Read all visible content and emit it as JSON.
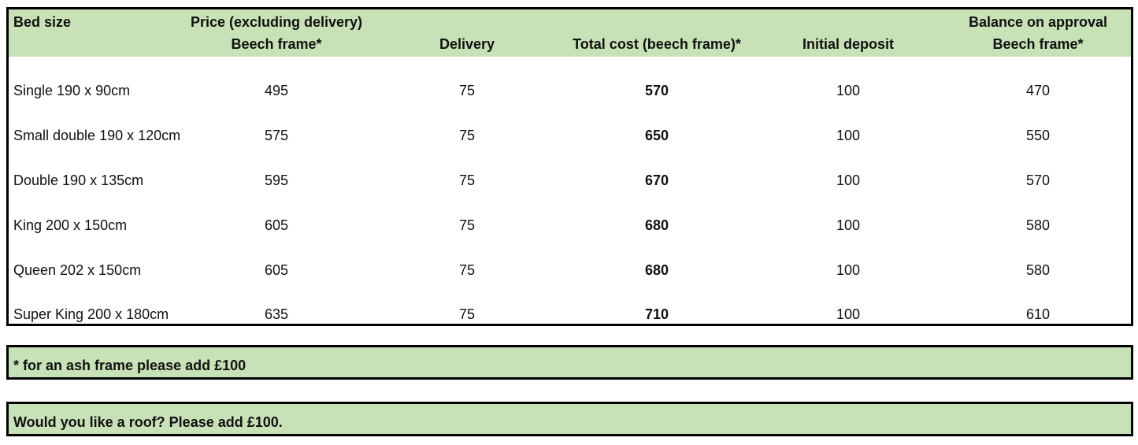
{
  "table": {
    "headers": {
      "bed_size": "Bed size",
      "price_line1": "Price (excluding delivery)",
      "price_line2": "Beech frame*",
      "delivery": "Delivery",
      "total_cost": "Total cost (beech frame)*",
      "initial_deposit": "Initial deposit",
      "balance_line1": "Balance on approval",
      "balance_line2": "Beech frame*"
    },
    "rows": [
      {
        "bed_size": "Single 190 x 90cm",
        "price": "495",
        "delivery": "75",
        "total": "570",
        "deposit": "100",
        "balance": "470"
      },
      {
        "bed_size": "Small double 190 x 120cm",
        "price": "575",
        "delivery": "75",
        "total": "650",
        "deposit": "100",
        "balance": "550"
      },
      {
        "bed_size": "Double 190 x 135cm",
        "price": "595",
        "delivery": "75",
        "total": "670",
        "deposit": "100",
        "balance": "570"
      },
      {
        "bed_size": "King 200 x 150cm",
        "price": "605",
        "delivery": "75",
        "total": "680",
        "deposit": "100",
        "balance": "580"
      },
      {
        "bed_size": "Queen 202 x 150cm",
        "price": "605",
        "delivery": "75",
        "total": "680",
        "deposit": "100",
        "balance": "580"
      },
      {
        "bed_size": "Super King 200 x 180cm",
        "price": "635",
        "delivery": "75",
        "total": "710",
        "deposit": "100",
        "balance": "610"
      }
    ]
  },
  "notes": {
    "ash_frame": "* for an ash frame please add £100",
    "roof": "Would you like a roof? Please add £100."
  },
  "colors": {
    "header_fill": "#c8e2b7",
    "border": "#000000"
  }
}
